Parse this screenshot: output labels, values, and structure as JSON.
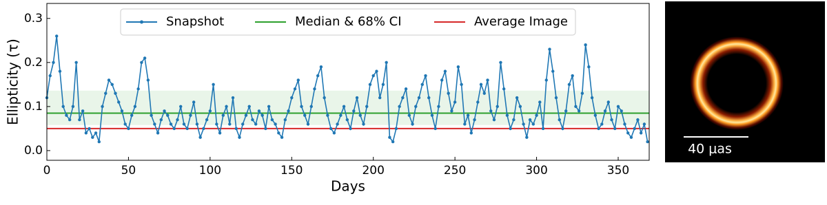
{
  "chart_data": {
    "type": "line",
    "xlabel": "Days",
    "ylabel": "Ellipticity (τ)",
    "x": [
      0,
      2,
      4,
      6,
      8,
      10,
      12,
      14,
      16,
      18,
      20,
      22,
      24,
      26,
      28,
      30,
      32,
      34,
      36,
      38,
      40,
      42,
      44,
      46,
      48,
      50,
      52,
      54,
      56,
      58,
      60,
      62,
      64,
      66,
      68,
      70,
      72,
      74,
      76,
      78,
      80,
      82,
      84,
      86,
      88,
      90,
      92,
      94,
      96,
      98,
      100,
      102,
      104,
      106,
      108,
      110,
      112,
      114,
      116,
      118,
      120,
      122,
      124,
      126,
      128,
      130,
      132,
      134,
      136,
      138,
      140,
      142,
      144,
      146,
      148,
      150,
      152,
      154,
      156,
      158,
      160,
      162,
      164,
      166,
      168,
      170,
      172,
      174,
      176,
      178,
      180,
      182,
      184,
      186,
      188,
      190,
      192,
      194,
      196,
      198,
      200,
      202,
      204,
      206,
      208,
      210,
      212,
      214,
      216,
      218,
      220,
      222,
      224,
      226,
      228,
      230,
      232,
      234,
      236,
      238,
      240,
      242,
      244,
      246,
      248,
      250,
      252,
      254,
      256,
      258,
      260,
      262,
      264,
      266,
      268,
      270,
      272,
      274,
      276,
      278,
      280,
      282,
      284,
      286,
      288,
      290,
      292,
      294,
      296,
      298,
      300,
      302,
      304,
      306,
      308,
      310,
      312,
      314,
      316,
      318,
      320,
      322,
      324,
      326,
      328,
      330,
      332,
      334,
      336,
      338,
      340,
      342,
      344,
      346,
      348,
      350,
      352,
      354,
      356,
      358,
      360,
      362,
      364,
      366,
      368
    ],
    "series": [
      {
        "name": "Snapshot",
        "color": "#1f77b4",
        "values": [
          0.12,
          0.17,
          0.2,
          0.26,
          0.18,
          0.1,
          0.08,
          0.07,
          0.1,
          0.2,
          0.07,
          0.09,
          0.04,
          0.05,
          0.03,
          0.04,
          0.02,
          0.1,
          0.13,
          0.16,
          0.15,
          0.13,
          0.11,
          0.09,
          0.06,
          0.05,
          0.08,
          0.1,
          0.14,
          0.2,
          0.21,
          0.16,
          0.08,
          0.06,
          0.04,
          0.07,
          0.09,
          0.08,
          0.06,
          0.05,
          0.07,
          0.1,
          0.06,
          0.05,
          0.08,
          0.11,
          0.06,
          0.03,
          0.05,
          0.07,
          0.09,
          0.15,
          0.06,
          0.04,
          0.08,
          0.1,
          0.06,
          0.12,
          0.05,
          0.03,
          0.06,
          0.08,
          0.1,
          0.07,
          0.06,
          0.09,
          0.08,
          0.05,
          0.1,
          0.07,
          0.06,
          0.04,
          0.03,
          0.07,
          0.09,
          0.12,
          0.14,
          0.16,
          0.1,
          0.08,
          0.06,
          0.1,
          0.14,
          0.17,
          0.19,
          0.12,
          0.08,
          0.05,
          0.04,
          0.06,
          0.08,
          0.1,
          0.07,
          0.05,
          0.09,
          0.12,
          0.08,
          0.06,
          0.1,
          0.15,
          0.17,
          0.18,
          0.12,
          0.15,
          0.2,
          0.03,
          0.02,
          0.05,
          0.1,
          0.12,
          0.14,
          0.08,
          0.06,
          0.1,
          0.12,
          0.15,
          0.17,
          0.12,
          0.08,
          0.05,
          0.1,
          0.16,
          0.18,
          0.13,
          0.09,
          0.11,
          0.19,
          0.15,
          0.06,
          0.08,
          0.04,
          0.07,
          0.11,
          0.15,
          0.13,
          0.16,
          0.09,
          0.07,
          0.1,
          0.2,
          0.14,
          0.08,
          0.05,
          0.07,
          0.12,
          0.1,
          0.06,
          0.03,
          0.07,
          0.06,
          0.08,
          0.11,
          0.05,
          0.16,
          0.23,
          0.18,
          0.12,
          0.07,
          0.05,
          0.09,
          0.15,
          0.17,
          0.1,
          0.09,
          0.13,
          0.24,
          0.19,
          0.12,
          0.08,
          0.05,
          0.06,
          0.09,
          0.11,
          0.07,
          0.05,
          0.1,
          0.09,
          0.06,
          0.04,
          0.03,
          0.05,
          0.07,
          0.04,
          0.06,
          0.02
        ]
      }
    ],
    "median": {
      "name": "Median & 68% CI",
      "color": "#2ca02c",
      "value": 0.085,
      "ci": [
        0.058,
        0.136
      ]
    },
    "average": {
      "name": "Average Image",
      "color": "#d62728",
      "value": 0.05
    },
    "xlim": [
      0,
      369
    ],
    "xticks": [
      0,
      50,
      100,
      150,
      200,
      250,
      300,
      350
    ],
    "ylim": [
      -0.022,
      0.334
    ],
    "yticks": [
      {
        "value": 0,
        "label": "0.0"
      },
      0.1,
      0.2,
      0.3
    ],
    "legend": "upper center",
    "image_panel": {
      "scale_label": "40 μas"
    }
  }
}
